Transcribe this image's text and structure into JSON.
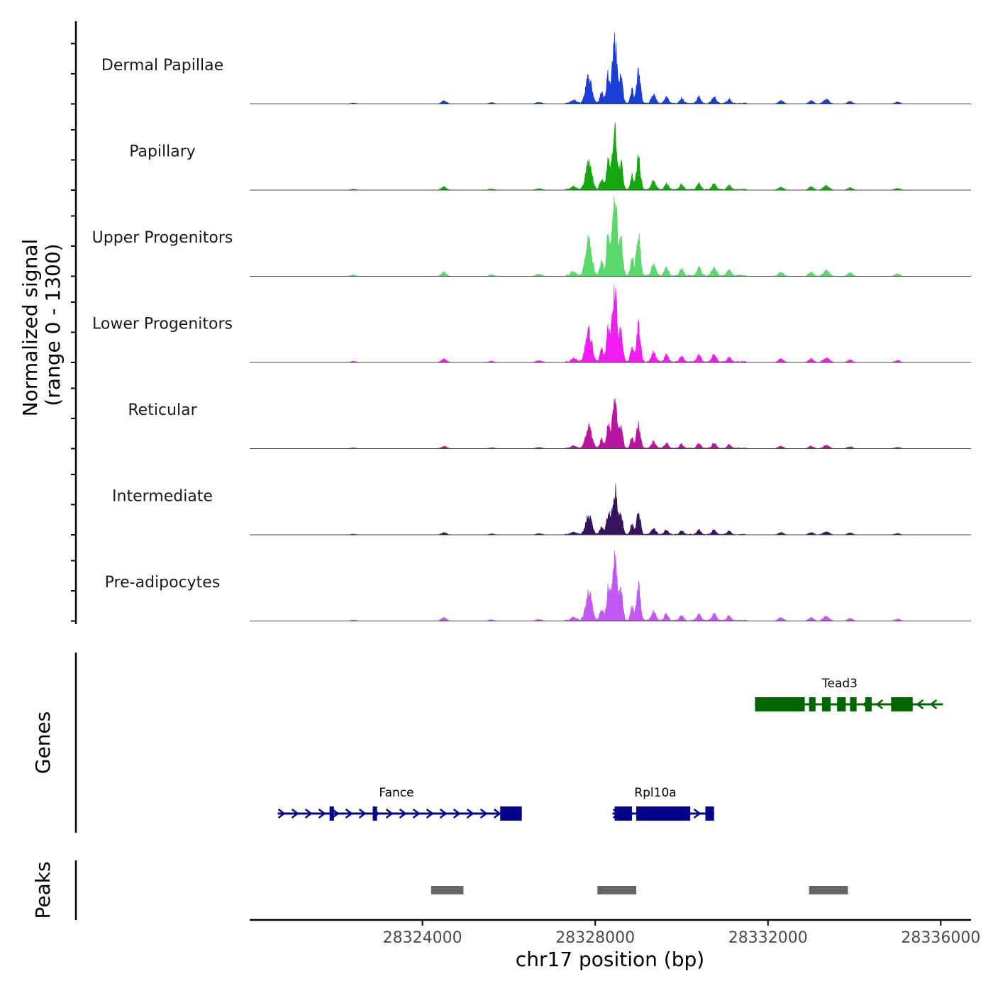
{
  "chart_data": {
    "type": "area",
    "y_axis_title_line1": "Normalized signal",
    "y_axis_title_line2": "(range 0 - 1300)",
    "ylim": [
      0,
      1300
    ],
    "xlabel": "chr17 position (bp)",
    "xlim": [
      28320000,
      28336700
    ],
    "x_ticks": [
      28324000,
      28328000,
      28332000,
      28336000
    ],
    "x_tick_labels": [
      "28324000",
      "28328000",
      "28332000",
      "28336000"
    ],
    "peak_position": 28328450,
    "tracks": [
      {
        "name": "Dermal Papillae",
        "color": "#1a3fd6",
        "max_signal": 1020
      },
      {
        "name": "Papillary",
        "color": "#14a80e",
        "max_signal": 990
      },
      {
        "name": "Upper Progenitors",
        "color": "#5ad86a",
        "max_signal": 1340
      },
      {
        "name": "Lower Progenitors",
        "color": "#f21df0",
        "max_signal": 1170
      },
      {
        "name": "Reticular",
        "color": "#b8169e",
        "max_signal": 780
      },
      {
        "name": "Intermediate",
        "color": "#37125e",
        "max_signal": 730
      },
      {
        "name": "Pre-adipocytes",
        "color": "#c158f5",
        "max_signal": 1080
      }
    ],
    "genes_title": "Genes",
    "genes": [
      {
        "name": "Tead3",
        "start": 28331700,
        "end": 28336050,
        "strand": "-",
        "color": "#006400",
        "exons": [
          [
            28331700,
            28332850
          ],
          [
            28332950,
            28333100
          ],
          [
            28333250,
            28333450
          ],
          [
            28333600,
            28333800
          ],
          [
            28333900,
            28334050
          ],
          [
            28334250,
            28334400
          ],
          [
            28334850,
            28335350
          ]
        ]
      },
      {
        "name": "Fance",
        "start": 28320650,
        "end": 28326300,
        "strand": "+",
        "color": "#00008b",
        "exons": [
          [
            28321850,
            28321950
          ],
          [
            28322850,
            28322900
          ],
          [
            28325800,
            28326300
          ]
        ]
      },
      {
        "name": "Rpl10a",
        "start": 28328400,
        "end": 28330750,
        "strand": "+",
        "color": "#00008b",
        "exons": [
          [
            28328450,
            28328850
          ],
          [
            28328950,
            28330200
          ],
          [
            28330550,
            28330750
          ]
        ]
      }
    ],
    "peaks_title": "Peaks",
    "peaks": [
      [
        28324200,
        28324950
      ],
      [
        28328050,
        28328950
      ],
      [
        28332950,
        28333850
      ]
    ],
    "colors": {
      "baseline": "#444444",
      "peak_bar": "#666666",
      "axis": "#000000"
    }
  }
}
